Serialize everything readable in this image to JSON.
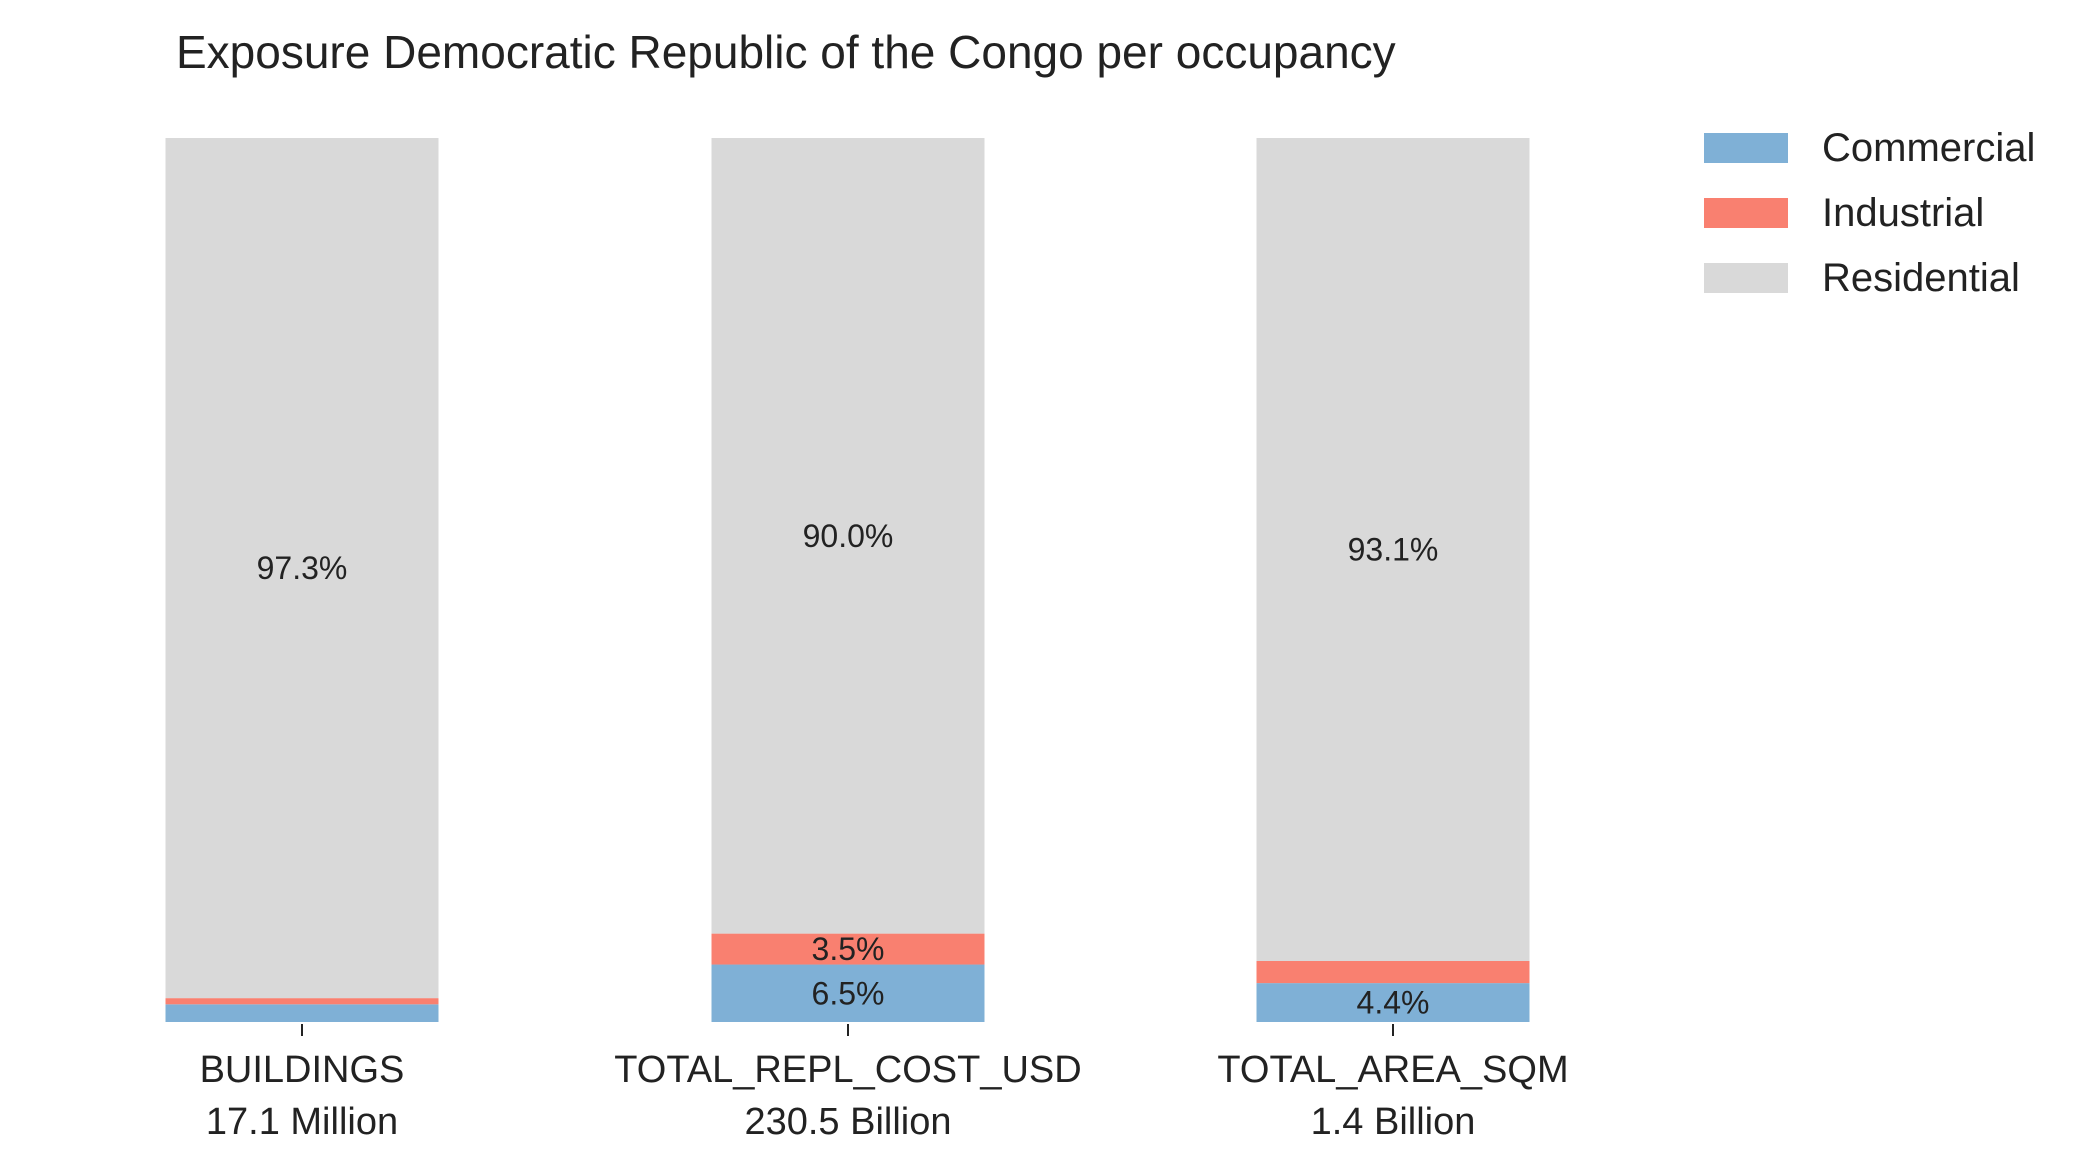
{
  "chart_data": {
    "type": "bar",
    "stacked": true,
    "normalized_percent": true,
    "title": "Exposure Democratic Republic of the Congo per occupancy",
    "xlabel": "",
    "ylabel": "",
    "ylim": [
      0,
      100
    ],
    "grid": false,
    "legend_position": "top-right",
    "categories": [
      "BUILDINGS",
      "TOTAL_REPL_COST_USD",
      "TOTAL_AREA_SQM"
    ],
    "category_totals": [
      "17.1 Million",
      "230.5 Billion",
      "1.4 Billion"
    ],
    "series": [
      {
        "name": "Commercial",
        "color": "#7fb0d6",
        "values": [
          2.0,
          6.5,
          4.4
        ],
        "data_labels": [
          "",
          "6.5%",
          "4.4%"
        ]
      },
      {
        "name": "Industrial",
        "color": "#f98070",
        "values": [
          0.7,
          3.5,
          2.5
        ],
        "data_labels": [
          "",
          "3.5%",
          ""
        ]
      },
      {
        "name": "Residential",
        "color": "#d9d9d9",
        "values": [
          97.3,
          90.0,
          93.1
        ],
        "data_labels": [
          "97.3%",
          "90.0%",
          "93.1%"
        ]
      }
    ]
  }
}
